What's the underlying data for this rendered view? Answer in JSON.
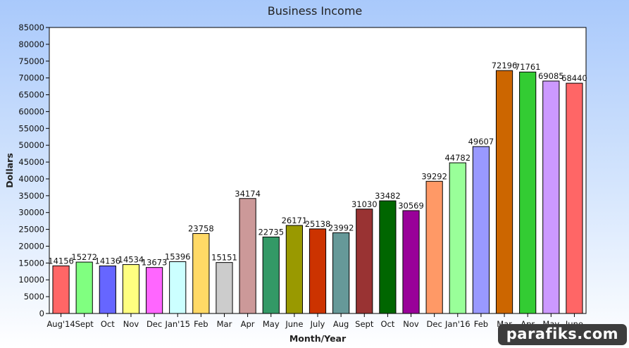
{
  "chart_data": {
    "type": "bar",
    "title": "Business Income",
    "xlabel": "Month/Year",
    "ylabel": "Dollars",
    "ylim": [
      0,
      85000
    ],
    "ytick_step": 5000,
    "grid": false,
    "categories": [
      "Aug'14",
      "Sept",
      "Oct",
      "Nov",
      "Dec",
      "Jan'15",
      "Feb",
      "Mar",
      "Apr",
      "May",
      "June",
      "July",
      "Aug",
      "Sept",
      "Oct",
      "Nov",
      "Dec",
      "Jan'16",
      "Feb",
      "Mar",
      "Apr",
      "May",
      "June"
    ],
    "values": [
      14156,
      15272,
      14136,
      14534,
      13673,
      15396,
      23758,
      15151,
      34174,
      22735,
      26171,
      25138,
      23992,
      31030,
      33482,
      30569,
      39292,
      44782,
      49607,
      72196,
      71761,
      69085,
      68440
    ],
    "colors": [
      "#ff6666",
      "#80ff80",
      "#6666ff",
      "#ffff80",
      "#ff66ff",
      "#ccffff",
      "#ffd966",
      "#cccccc",
      "#cc9999",
      "#339966",
      "#999900",
      "#cc3300",
      "#669999",
      "#993333",
      "#006600",
      "#990099",
      "#ff9966",
      "#99ff99",
      "#9999ff",
      "#cc6600",
      "#33cc33",
      "#cc99ff",
      "#ff6666"
    ]
  },
  "watermark": "parafiks.com"
}
